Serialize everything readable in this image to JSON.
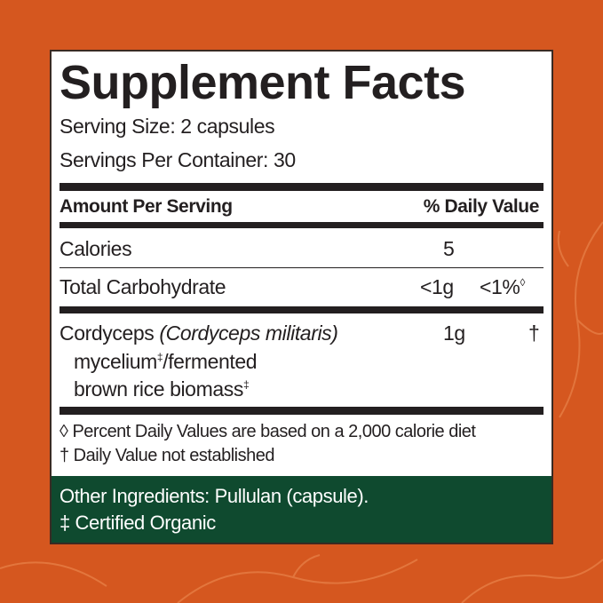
{
  "colors": {
    "background": "#d5571f",
    "panel": "#ffffff",
    "ingredients_band": "#0f4a2f",
    "text": "#231f20"
  },
  "label": {
    "title": "Supplement Facts",
    "serving_size": "Serving Size: 2 capsules",
    "servings_per_container": "Servings Per Container: 30",
    "header_amount": "Amount Per Serving",
    "header_dv": "% Daily Value",
    "rows": [
      {
        "name": "Calories",
        "amount": "5",
        "dv": ""
      },
      {
        "name": "Total Carbohydrate",
        "amount": "<1g",
        "dv": "<1%",
        "dv_mark": "◊"
      },
      {
        "name": "Cordyceps",
        "latin": "(Cordyceps militaris)",
        "line2": "mycelium",
        "line2_mark": "‡",
        "line2_rest": "/fermented",
        "line3": "brown rice biomass",
        "line3_mark": "‡",
        "amount": "1g",
        "dv": "†"
      }
    ],
    "footnote_1": "◊ Percent Daily Values are based on a 2,000 calorie diet",
    "footnote_2": "† Daily Value not established",
    "other_ingredients": "Other Ingredients: Pullulan (capsule).",
    "organic_note": "‡ Certified Organic"
  }
}
